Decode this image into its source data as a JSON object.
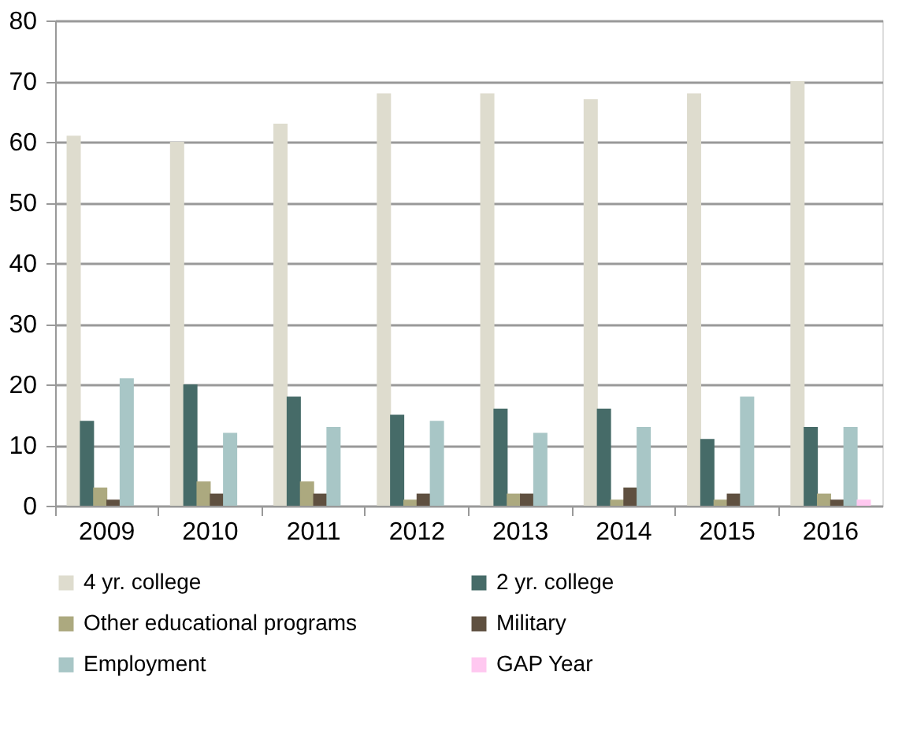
{
  "chart_data": {
    "type": "bar",
    "categories": [
      "2009",
      "2010",
      "2011",
      "2012",
      "2013",
      "2014",
      "2015",
      "2016"
    ],
    "series": [
      {
        "name": "4 yr. college",
        "color": "#dedcce",
        "values": [
          61,
          60,
          63,
          68,
          68,
          67,
          68,
          70
        ]
      },
      {
        "name": "2 yr. college",
        "color": "#466b68",
        "values": [
          14,
          20,
          18,
          15,
          16,
          16,
          11,
          13
        ]
      },
      {
        "name": "Other educational programs",
        "color": "#aca97f",
        "values": [
          3,
          4,
          4,
          1,
          2,
          1,
          1,
          2
        ]
      },
      {
        "name": "Military",
        "color": "#5f5040",
        "values": [
          1,
          2,
          2,
          2,
          2,
          3,
          2,
          1
        ]
      },
      {
        "name": "Employment",
        "color": "#a8c6c6",
        "values": [
          21,
          12,
          13,
          14,
          12,
          13,
          18,
          13
        ]
      },
      {
        "name": "GAP Year",
        "color": "#ffc8f0",
        "values": [
          0,
          0,
          0,
          0,
          0,
          0,
          0,
          1
        ]
      }
    ],
    "ylim": [
      0,
      80
    ],
    "yticks": [
      0,
      10,
      20,
      30,
      40,
      50,
      60,
      70,
      80
    ],
    "grid": "y",
    "legend": "bottom"
  }
}
